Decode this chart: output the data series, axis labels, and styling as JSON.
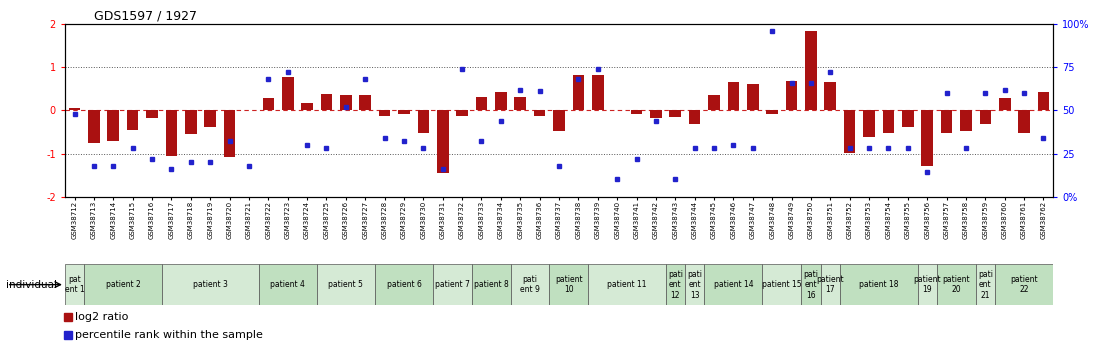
{
  "title": "GDS1597 / 1927",
  "gsm_labels": [
    "GSM38712",
    "GSM38713",
    "GSM38714",
    "GSM38715",
    "GSM38716",
    "GSM38717",
    "GSM38718",
    "GSM38719",
    "GSM38720",
    "GSM38721",
    "GSM38722",
    "GSM38723",
    "GSM38724",
    "GSM38725",
    "GSM38726",
    "GSM38727",
    "GSM38728",
    "GSM38729",
    "GSM38730",
    "GSM38731",
    "GSM38732",
    "GSM38733",
    "GSM38734",
    "GSM38735",
    "GSM38736",
    "GSM38737",
    "GSM38738",
    "GSM38739",
    "GSM38740",
    "GSM38741",
    "GSM38742",
    "GSM38743",
    "GSM38744",
    "GSM38745",
    "GSM38746",
    "GSM38747",
    "GSM38748",
    "GSM38749",
    "GSM38750",
    "GSM38751",
    "GSM38752",
    "GSM38753",
    "GSM38754",
    "GSM38755",
    "GSM38756",
    "GSM38757",
    "GSM38758",
    "GSM38759",
    "GSM38760",
    "GSM38761",
    "GSM38762"
  ],
  "log2_ratio": [
    0.05,
    -0.75,
    -0.72,
    -0.45,
    -0.18,
    -1.05,
    -0.55,
    -0.38,
    -1.08,
    0.0,
    0.28,
    0.78,
    0.18,
    0.38,
    0.35,
    0.35,
    -0.12,
    -0.08,
    -0.52,
    -1.45,
    -0.12,
    0.32,
    0.42,
    0.32,
    -0.12,
    -0.48,
    0.82,
    0.82,
    0.02,
    -0.08,
    -0.18,
    -0.15,
    -0.32,
    0.35,
    0.65,
    0.62,
    -0.08,
    0.68,
    1.85,
    0.65,
    -0.98,
    -0.62,
    -0.52,
    -0.38,
    -1.28,
    -0.52,
    -0.48,
    -0.32,
    0.28,
    -0.52,
    0.42
  ],
  "percentile_pct": [
    48,
    18,
    18,
    28,
    22,
    16,
    20,
    20,
    32,
    18,
    68,
    72,
    30,
    28,
    52,
    68,
    34,
    32,
    28,
    16,
    74,
    32,
    44,
    62,
    61,
    18,
    68,
    74,
    10,
    22,
    44,
    10,
    28,
    28,
    30,
    28,
    96,
    66,
    66,
    72,
    28,
    28,
    28,
    28,
    14,
    60,
    28,
    60,
    62,
    60,
    34
  ],
  "patients": [
    {
      "label": "pat\nent 1",
      "start": 0,
      "end": 1,
      "color": "#d5ead5"
    },
    {
      "label": "patient 2",
      "start": 1,
      "end": 5,
      "color": "#c0e0c0"
    },
    {
      "label": "patient 3",
      "start": 5,
      "end": 10,
      "color": "#d5ead5"
    },
    {
      "label": "patient 4",
      "start": 10,
      "end": 13,
      "color": "#c0e0c0"
    },
    {
      "label": "patient 5",
      "start": 13,
      "end": 16,
      "color": "#d5ead5"
    },
    {
      "label": "patient 6",
      "start": 16,
      "end": 19,
      "color": "#c0e0c0"
    },
    {
      "label": "patient 7",
      "start": 19,
      "end": 21,
      "color": "#d5ead5"
    },
    {
      "label": "patient 8",
      "start": 21,
      "end": 23,
      "color": "#c0e0c0"
    },
    {
      "label": "pati\nent 9",
      "start": 23,
      "end": 25,
      "color": "#d5ead5"
    },
    {
      "label": "patient\n10",
      "start": 25,
      "end": 27,
      "color": "#c0e0c0"
    },
    {
      "label": "patient 11",
      "start": 27,
      "end": 31,
      "color": "#d5ead5"
    },
    {
      "label": "pati\nent\n12",
      "start": 31,
      "end": 32,
      "color": "#c0e0c0"
    },
    {
      "label": "pati\nent\n13",
      "start": 32,
      "end": 33,
      "color": "#d5ead5"
    },
    {
      "label": "patient 14",
      "start": 33,
      "end": 36,
      "color": "#c0e0c0"
    },
    {
      "label": "patient 15",
      "start": 36,
      "end": 38,
      "color": "#d5ead5"
    },
    {
      "label": "pati\nent\n16",
      "start": 38,
      "end": 39,
      "color": "#c0e0c0"
    },
    {
      "label": "patient\n17",
      "start": 39,
      "end": 40,
      "color": "#d5ead5"
    },
    {
      "label": "patient 18",
      "start": 40,
      "end": 44,
      "color": "#c0e0c0"
    },
    {
      "label": "patient\n19",
      "start": 44,
      "end": 45,
      "color": "#d5ead5"
    },
    {
      "label": "patient\n20",
      "start": 45,
      "end": 47,
      "color": "#c0e0c0"
    },
    {
      "label": "pati\nent\n21",
      "start": 47,
      "end": 48,
      "color": "#d5ead5"
    },
    {
      "label": "patient\n22",
      "start": 48,
      "end": 51,
      "color": "#c0e0c0"
    }
  ],
  "bar_color": "#aa1111",
  "dot_color": "#2222cc",
  "ylim": [
    -2,
    2
  ],
  "background": "#ffffff"
}
